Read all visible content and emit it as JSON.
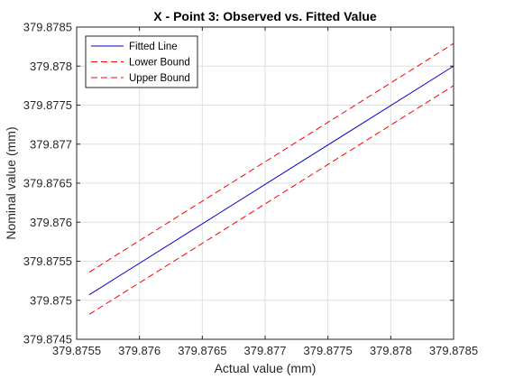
{
  "chart_data": {
    "type": "line",
    "title": "X - Point 3: Observed vs. Fitted Value",
    "xlabel": "Actual value (mm)",
    "ylabel": "Nominal value (mm)",
    "xlim": [
      379.8755,
      379.8785
    ],
    "ylim": [
      379.8745,
      379.8785
    ],
    "x_ticks": [
      "379.8755",
      "379.876",
      "379.8765",
      "379.877",
      "379.8775",
      "379.878",
      "379.8785"
    ],
    "y_ticks": [
      "379.8745",
      "379.875",
      "379.8755",
      "379.876",
      "379.8765",
      "379.877",
      "379.8775",
      "379.878",
      "379.8785"
    ],
    "grid": true,
    "legend_position": "top-left",
    "series": [
      {
        "name": "Fitted Line",
        "color": "#0000cc",
        "dash": "solid",
        "x": [
          379.8756,
          379.8785
        ],
        "y": [
          379.87507,
          379.878
        ]
      },
      {
        "name": "Lower Bound",
        "color": "#ff0000",
        "dash": "dashed",
        "x": [
          379.8756,
          379.8785
        ],
        "y": [
          379.87482,
          379.87775
        ]
      },
      {
        "name": "Upper Bound",
        "color": "#ff0000",
        "dash": "dashed",
        "x": [
          379.8756,
          379.8785
        ],
        "y": [
          379.87536,
          379.87829
        ]
      }
    ]
  }
}
